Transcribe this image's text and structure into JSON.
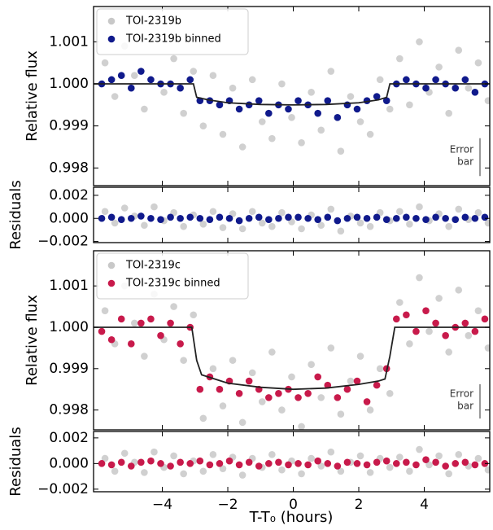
{
  "shared_x": {
    "xlabel": "T-T₀ (hours)",
    "xlim": [
      -6.1,
      6.0
    ],
    "xticks": [
      {
        "value": -4,
        "label": "−4"
      },
      {
        "value": -2,
        "label": "−2"
      },
      0,
      2,
      4
    ]
  },
  "chart_data": [
    {
      "type": "scatter",
      "ylabel": "Relative flux",
      "ylim": [
        0.99758,
        1.00184
      ],
      "yticks": [
        0.998,
        0.999,
        {
          "value": 1,
          "label": "1.000"
        },
        1.001
      ],
      "legend": "upper left",
      "error_bar": 0.0009,
      "error_bar_text": [
        "Error",
        "bar"
      ],
      "series": [
        {
          "name": "TOI-2319b",
          "color": "#c8c8c8",
          "x": [
            -5.75,
            -5.45,
            -5.15,
            -4.85,
            -4.55,
            -4.25,
            -3.95,
            -3.65,
            -3.35,
            -3.05,
            -2.75,
            -2.45,
            -2.15,
            -1.85,
            -1.55,
            -1.25,
            -0.95,
            -0.65,
            -0.35,
            -0.05,
            0.25,
            0.55,
            0.85,
            1.15,
            1.45,
            1.75,
            2.05,
            2.35,
            2.65,
            2.95,
            3.25,
            3.55,
            3.85,
            4.15,
            4.45,
            4.75,
            5.05,
            5.35,
            5.65,
            5.95
          ],
          "values": [
            1.0005,
            0.9997,
            1.0009,
            1.0002,
            0.9994,
            1.0011,
            0.9998,
            1.0006,
            0.9993,
            1.0003,
            0.999,
            1.0002,
            0.9988,
            0.9999,
            0.9985,
            1.0001,
            0.9991,
            0.9987,
            1.0,
            0.9992,
            0.9986,
            0.9998,
            0.9989,
            1.0003,
            0.9984,
            0.9997,
            0.9991,
            0.9988,
            1.0001,
            0.9994,
            1.0006,
            0.9995,
            1.001,
            0.9998,
            1.0004,
            0.9993,
            1.0008,
            0.9999,
            1.0005,
            0.9996
          ]
        },
        {
          "name": "TOI-2319b binned",
          "color": "#101a8c",
          "x": [
            -5.85,
            -5.55,
            -5.25,
            -4.95,
            -4.65,
            -4.35,
            -4.05,
            -3.75,
            -3.45,
            -3.15,
            -2.85,
            -2.55,
            -2.25,
            -1.95,
            -1.65,
            -1.35,
            -1.05,
            -0.75,
            -0.45,
            -0.15,
            0.15,
            0.45,
            0.75,
            1.05,
            1.35,
            1.65,
            1.95,
            2.25,
            2.55,
            2.85,
            3.15,
            3.45,
            3.75,
            4.05,
            4.35,
            4.65,
            4.95,
            5.25,
            5.55,
            5.85
          ],
          "values": [
            1.0,
            1.0001,
            1.0002,
            0.9999,
            1.0003,
            1.0001,
            1.0,
            1.0,
            0.9999,
            1.0001,
            0.9996,
            0.9996,
            0.9995,
            0.9996,
            0.9994,
            0.9995,
            0.9996,
            0.9993,
            0.9995,
            0.9994,
            0.9996,
            0.9995,
            0.9993,
            0.9996,
            0.9992,
            0.9995,
            0.9994,
            0.9996,
            0.9997,
            0.9996,
            1.0,
            1.0001,
            1.0,
            0.9999,
            1.0001,
            1.0,
            0.9999,
            1.0001,
            0.9998,
            1.0
          ]
        }
      ],
      "model": {
        "color": "#222222",
        "x": [
          -6.1,
          -3.05,
          -2.95,
          -2.6,
          -2,
          -1,
          0,
          1,
          2,
          2.6,
          2.85,
          2.95,
          6.0
        ],
        "values": [
          1,
          1,
          0.99968,
          0.99962,
          0.99955,
          0.99951,
          0.9995,
          0.99951,
          0.99955,
          0.99962,
          0.99968,
          1,
          1
        ]
      }
    },
    {
      "type": "scatter",
      "ylabel": "Residuals",
      "ylim": [
        -0.0021,
        0.0027
      ],
      "yticks": [
        {
          "value": -0.002,
          "label": "−0.002"
        },
        {
          "value": 0,
          "label": "0.000"
        },
        0.002
      ],
      "series": [
        {
          "color": "#c8c8c8",
          "x": [
            -5.75,
            -5.45,
            -5.15,
            -4.85,
            -4.55,
            -4.25,
            -3.95,
            -3.65,
            -3.35,
            -3.05,
            -2.75,
            -2.45,
            -2.15,
            -1.85,
            -1.55,
            -1.25,
            -0.95,
            -0.65,
            -0.35,
            -0.05,
            0.25,
            0.55,
            0.85,
            1.15,
            1.45,
            1.75,
            2.05,
            2.35,
            2.65,
            2.95,
            3.25,
            3.55,
            3.85,
            4.15,
            4.45,
            4.75,
            5.05,
            5.35,
            5.65,
            5.95
          ],
          "values": [
            0.0006,
            -0.0004,
            0.0009,
            0.0002,
            -0.0006,
            0.001,
            -0.0002,
            0.0005,
            -0.0007,
            0.0003,
            -0.0005,
            0.0006,
            -0.0008,
            0.0004,
            -0.0009,
            0.0006,
            -0.0004,
            -0.0007,
            0.0005,
            -0.0003,
            -0.0009,
            0.0003,
            -0.0006,
            0.0008,
            -0.0011,
            0.0002,
            -0.0004,
            -0.0007,
            0.0005,
            -0.0002,
            0.0006,
            -0.0005,
            0.001,
            -0.0002,
            0.0004,
            -0.0007,
            0.0008,
            -0.0001,
            0.0005,
            -0.0004
          ]
        },
        {
          "color": "#101a8c",
          "x": [
            -5.85,
            -5.55,
            -5.25,
            -4.95,
            -4.65,
            -4.35,
            -4.05,
            -3.75,
            -3.45,
            -3.15,
            -2.85,
            -2.55,
            -2.25,
            -1.95,
            -1.65,
            -1.35,
            -1.05,
            -0.75,
            -0.45,
            -0.15,
            0.15,
            0.45,
            0.75,
            1.05,
            1.35,
            1.65,
            1.95,
            2.25,
            2.55,
            2.85,
            3.15,
            3.45,
            3.75,
            4.05,
            4.35,
            4.65,
            4.95,
            5.25,
            5.55,
            5.85
          ],
          "values": [
            0.0,
            0.0001,
            -0.0001,
            0.0,
            0.0002,
            0.0,
            -0.0001,
            0.0001,
            0.0,
            0.0001,
            0.0,
            -0.0001,
            0.0001,
            0.0,
            -0.0002,
            0.0,
            0.0001,
            -0.0001,
            0.0,
            0.0001,
            0.0001,
            0.0,
            -0.0001,
            0.0001,
            -0.0002,
            0.0,
            0.0001,
            0.0,
            0.0001,
            -0.0001,
            0.0,
            0.0001,
            0.0,
            -0.0001,
            0.0001,
            0.0,
            -0.0001,
            0.0001,
            0.0,
            0.0001
          ]
        }
      ]
    },
    {
      "type": "scatter",
      "ylabel": "Relative flux",
      "ylim": [
        0.99752,
        1.00185
      ],
      "yticks": [
        0.998,
        0.999,
        {
          "value": 1,
          "label": "1.000"
        },
        1.001
      ],
      "legend": "upper left",
      "error_bar": 0.00083,
      "error_bar_text": [
        "Error",
        "bar"
      ],
      "series": [
        {
          "name": "TOI-2319c",
          "color": "#c8c8c8",
          "x": [
            -5.75,
            -5.45,
            -5.15,
            -4.85,
            -4.55,
            -4.25,
            -3.95,
            -3.65,
            -3.35,
            -3.05,
            -2.75,
            -2.45,
            -2.15,
            -1.85,
            -1.55,
            -1.25,
            -0.95,
            -0.65,
            -0.35,
            -0.05,
            0.25,
            0.55,
            0.85,
            1.15,
            1.45,
            1.75,
            2.05,
            2.35,
            2.65,
            2.95,
            3.25,
            3.55,
            3.85,
            4.15,
            4.45,
            4.75,
            5.05,
            5.35,
            5.65,
            5.95
          ],
          "values": [
            1.0004,
            0.9996,
            1.001,
            1.0001,
            0.9993,
            1.0008,
            0.9997,
            1.0005,
            0.9992,
            1.0003,
            0.9978,
            0.999,
            0.9981,
            0.9992,
            0.9977,
            0.9989,
            0.9982,
            0.9994,
            0.998,
            0.9988,
            0.9976,
            0.9991,
            0.9983,
            0.9995,
            0.9979,
            0.9987,
            0.9993,
            0.998,
            0.999,
            0.9984,
            1.0006,
            0.9996,
            1.0012,
            0.9999,
            1.0007,
            0.9994,
            1.0009,
            0.9998,
            1.0004,
            0.9995
          ]
        },
        {
          "name": "TOI-2319c binned",
          "color": "#c81a4b",
          "x": [
            -5.85,
            -5.55,
            -5.25,
            -4.95,
            -4.65,
            -4.35,
            -4.05,
            -3.75,
            -3.45,
            -3.15,
            -2.85,
            -2.55,
            -2.25,
            -1.95,
            -1.65,
            -1.35,
            -1.05,
            -0.75,
            -0.45,
            -0.15,
            0.15,
            0.45,
            0.75,
            1.05,
            1.35,
            1.65,
            1.95,
            2.25,
            2.55,
            2.85,
            3.15,
            3.45,
            3.75,
            4.05,
            4.35,
            4.65,
            4.95,
            5.25,
            5.55,
            5.85
          ],
          "values": [
            0.9999,
            0.9997,
            1.0002,
            0.9996,
            1.0001,
            1.0002,
            0.9998,
            1.0001,
            0.9996,
            1.0,
            0.9985,
            0.9988,
            0.9985,
            0.9987,
            0.9984,
            0.9987,
            0.9985,
            0.9983,
            0.9984,
            0.9985,
            0.9983,
            0.9984,
            0.9988,
            0.9986,
            0.9983,
            0.9985,
            0.9987,
            0.9982,
            0.9986,
            0.999,
            1.0002,
            1.0003,
            0.9999,
            1.0004,
            1.0001,
            0.9998,
            1.0,
            1.0001,
            0.9999,
            1.0002
          ]
        }
      ],
      "model": {
        "color": "#222222",
        "x": [
          -6.1,
          -3.1,
          -2.95,
          -2.8,
          -2,
          -1,
          0,
          1,
          2,
          2.6,
          2.8,
          2.95,
          3.1,
          6.0
        ],
        "values": [
          1,
          1,
          0.9992,
          0.99885,
          0.99865,
          0.99855,
          0.9985,
          0.99853,
          0.99862,
          0.9987,
          0.99875,
          0.9993,
          1,
          1
        ]
      }
    },
    {
      "type": "scatter",
      "ylabel": "Residuals",
      "ylim": [
        -0.0022,
        0.0025
      ],
      "yticks": [
        {
          "value": -0.002,
          "label": "−0.002"
        },
        {
          "value": 0,
          "label": "0.000"
        },
        0.002
      ],
      "series": [
        {
          "color": "#c8c8c8",
          "x": [
            -5.75,
            -5.45,
            -5.15,
            -4.85,
            -4.55,
            -4.25,
            -3.95,
            -3.65,
            -3.35,
            -3.05,
            -2.75,
            -2.45,
            -2.15,
            -1.85,
            -1.55,
            -1.25,
            -0.95,
            -0.65,
            -0.35,
            -0.05,
            0.25,
            0.55,
            0.85,
            1.15,
            1.45,
            1.75,
            2.05,
            2.35,
            2.65,
            2.95,
            3.25,
            3.55,
            3.85,
            4.15,
            4.45,
            4.75,
            5.05,
            5.35,
            5.65,
            5.95
          ],
          "values": [
            0.0004,
            -0.0006,
            0.0008,
            0.0001,
            -0.0007,
            0.0009,
            -0.0003,
            0.0006,
            -0.0008,
            0.0002,
            -0.0006,
            0.0007,
            -0.0004,
            0.0005,
            -0.0009,
            0.0004,
            -0.0003,
            0.0007,
            -0.0005,
            0.0002,
            -0.0008,
            0.0004,
            -0.0002,
            0.0009,
            -0.0006,
            0.0001,
            0.0006,
            -0.0007,
            0.0004,
            -0.0003,
            0.0005,
            -0.0006,
            0.0011,
            -0.0001,
            0.0006,
            -0.0008,
            0.0007,
            -0.0002,
            0.0004,
            -0.0005
          ]
        },
        {
          "color": "#c81a4b",
          "x": [
            -5.85,
            -5.55,
            -5.25,
            -4.95,
            -4.65,
            -4.35,
            -4.05,
            -3.75,
            -3.45,
            -3.15,
            -2.85,
            -2.55,
            -2.25,
            -1.95,
            -1.65,
            -1.35,
            -1.05,
            -0.75,
            -0.45,
            -0.15,
            0.15,
            0.45,
            0.75,
            1.05,
            1.35,
            1.65,
            1.95,
            2.25,
            2.55,
            2.85,
            3.15,
            3.45,
            3.75,
            4.05,
            4.35,
            4.65,
            4.95,
            5.25,
            5.55,
            5.85
          ],
          "values": [
            0.0,
            -0.0001,
            0.0001,
            -0.0002,
            0.0001,
            0.0002,
            0.0,
            -0.0002,
            0.0001,
            0.0,
            0.0002,
            -0.0001,
            0.0,
            0.0002,
            -0.0001,
            0.0001,
            -0.0002,
            0.0,
            0.0001,
            -0.0001,
            0.0,
            -0.0001,
            0.0002,
            0.0,
            -0.0002,
            0.0001,
            0.0,
            -0.0001,
            0.0001,
            0.0002,
            0.0,
            0.0001,
            -0.0001,
            0.0003,
            0.0001,
            -0.0002,
            0.0,
            0.0001,
            -0.0001,
            0.0
          ]
        }
      ]
    }
  ]
}
